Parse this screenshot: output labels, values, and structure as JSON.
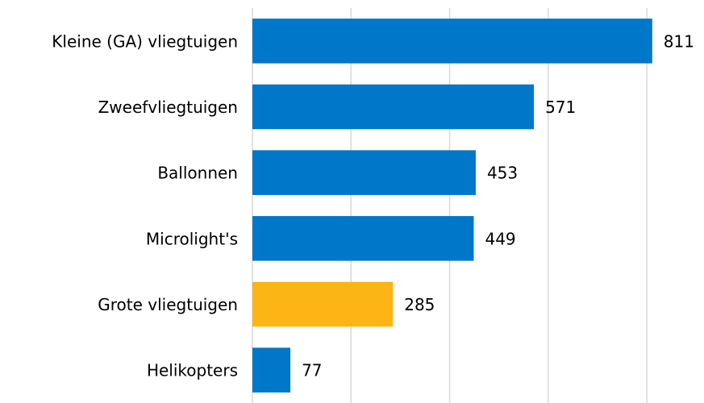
{
  "chart_data": {
    "type": "bar",
    "orientation": "horizontal",
    "categories": [
      "Kleine (GA) vliegtuigen",
      "Zweefvliegtuigen",
      "Ballonnen",
      "Microlight's",
      "Grote vliegtuigen",
      "Helikopters"
    ],
    "values": [
      811,
      571,
      453,
      449,
      285,
      77
    ],
    "colors": [
      "#0077c8",
      "#0077c8",
      "#0077c8",
      "#0077c8",
      "#fdb515",
      "#0077c8"
    ],
    "xlim": [
      0,
      916
    ],
    "xticks": [
      0,
      200,
      400,
      600,
      800
    ],
    "grid": true
  }
}
